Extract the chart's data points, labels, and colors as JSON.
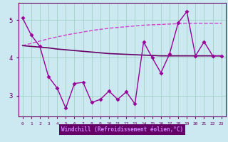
{
  "x": [
    0,
    1,
    2,
    3,
    4,
    5,
    6,
    7,
    8,
    9,
    10,
    11,
    12,
    13,
    14,
    15,
    16,
    17,
    18,
    19,
    20,
    21,
    22,
    23
  ],
  "line_jagged": [
    5.05,
    4.6,
    4.3,
    3.5,
    3.2,
    2.67,
    3.32,
    3.35,
    2.82,
    2.9,
    3.12,
    2.9,
    3.1,
    2.78,
    4.42,
    4.0,
    3.6,
    4.1,
    4.92,
    5.22,
    4.05,
    4.42,
    4.05,
    4.05
  ],
  "line_flat": [
    4.32,
    4.3,
    4.28,
    4.26,
    4.23,
    4.21,
    4.19,
    4.17,
    4.15,
    4.13,
    4.11,
    4.1,
    4.09,
    4.08,
    4.07,
    4.06,
    4.05,
    4.05,
    4.05,
    4.05,
    4.05,
    4.05,
    4.05,
    4.05
  ],
  "line_rise": [
    4.32,
    4.38,
    4.44,
    4.5,
    4.55,
    4.6,
    4.64,
    4.68,
    4.72,
    4.75,
    4.78,
    4.8,
    4.82,
    4.84,
    4.86,
    4.87,
    4.88,
    4.89,
    4.9,
    4.91,
    4.91,
    4.91,
    4.91,
    4.91
  ],
  "bg_color": "#cce8f0",
  "plot_bg": "#cce8f0",
  "color_jagged": "#990099",
  "color_flat": "#660066",
  "color_rise": "#cc44cc",
  "grid_color": "#99ccbb",
  "xlabel": "Windchill (Refroidissement éolien,°C)",
  "xlabel_bg": "#660066",
  "xlabel_color": "#cc88ff",
  "tick_color": "#660066",
  "yticks": [
    3,
    4,
    5
  ],
  "xtick_labels": [
    "0",
    "1",
    "2",
    "3",
    "4",
    "5",
    "6",
    "7",
    "8",
    "9",
    "10",
    "11",
    "12",
    "13",
    "14",
    "15",
    "16",
    "17",
    "18",
    "19",
    "20",
    "21",
    "22",
    "23"
  ],
  "xlim": [
    -0.5,
    23.5
  ],
  "ylim": [
    2.45,
    5.45
  ],
  "markersize": 3,
  "linewidth": 1.0
}
